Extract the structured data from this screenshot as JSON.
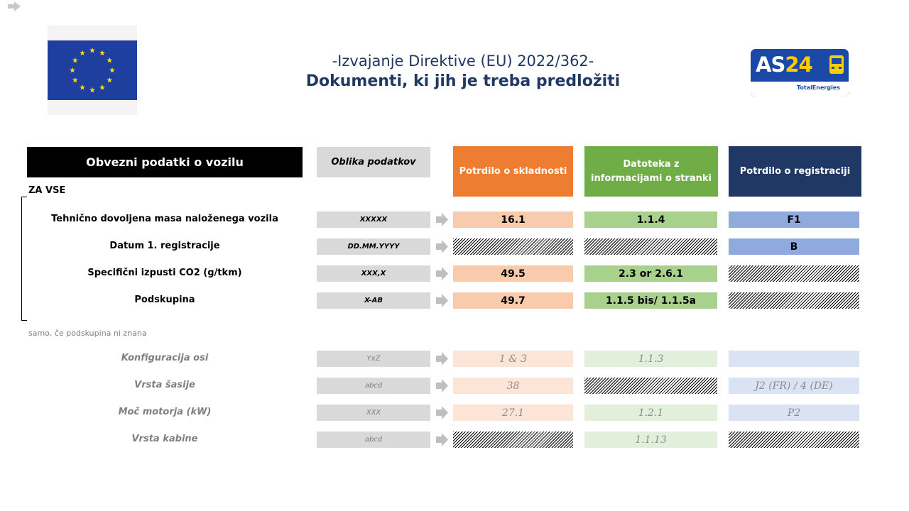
{
  "colors": {
    "orange": "#ed7d31",
    "green": "#70ad47",
    "navy": "#1f3864",
    "orange_light": "#f8cbad",
    "green_light": "#a9d18e",
    "blue_light": "#8faadc",
    "orange_pale": "#fce4d6",
    "green_pale": "#e2efda",
    "blue_pale": "#dae3f3",
    "format_grey": "#d9d9d9"
  },
  "title": {
    "line1": "-Izvajanje Direktive (EU) 2022/362-",
    "line2": "Dokumenti, ki jih je treba predložiti"
  },
  "logo": {
    "brand_prefix": "AS",
    "brand_number": "24",
    "sub": "TotalEnergies"
  },
  "headers": {
    "vehicle_data": "Obvezni podatki o vozilu",
    "data_format": "Oblika podatkov",
    "col1": "Potrdilo o skladnosti",
    "col2": "Datoteka z informacijami o stranki",
    "col3": "Potrdilo o registraciji"
  },
  "section_label": "ZA VSE",
  "note": "samo, če podskupina ni znana",
  "mandatory_rows": [
    {
      "label": "Tehnično dovoljena masa naloženega vozila",
      "format": "XXXXX",
      "col1": "16.1",
      "col2": "1.1.4",
      "col3": "F1"
    },
    {
      "label": "Datum 1. registracije",
      "format": "DD.MM.YYYY",
      "col1": "",
      "col2": "",
      "col3": "B"
    },
    {
      "label": "Specifični izpusti CO2 (g/tkm)",
      "format": "XXX,X",
      "col1": "49.5",
      "col2": "2.3 or 2.6.1",
      "col3": ""
    },
    {
      "label": "Podskupina",
      "format": "X-AB",
      "col1": "49.7",
      "col2": "1.1.5 bis/ 1.1.5a",
      "col3": ""
    }
  ],
  "optional_rows": [
    {
      "label": "Konfiguracija osi",
      "format": "YxZ",
      "col1": "1 & 3",
      "col2": "1.1.3",
      "col3": ""
    },
    {
      "label": "Vrsta šasije",
      "format": "abcd",
      "col1": "38",
      "col2": "",
      "col3": "J2 (FR) / 4 (DE)"
    },
    {
      "label": "Moč motorja (kW)",
      "format": "XXX",
      "col1": "27.1",
      "col2": "1.2.1",
      "col3": "P2"
    },
    {
      "label": "Vrsta kabine",
      "format": "abcd",
      "col1": "",
      "col2": "1.1.13",
      "col3": ""
    }
  ]
}
